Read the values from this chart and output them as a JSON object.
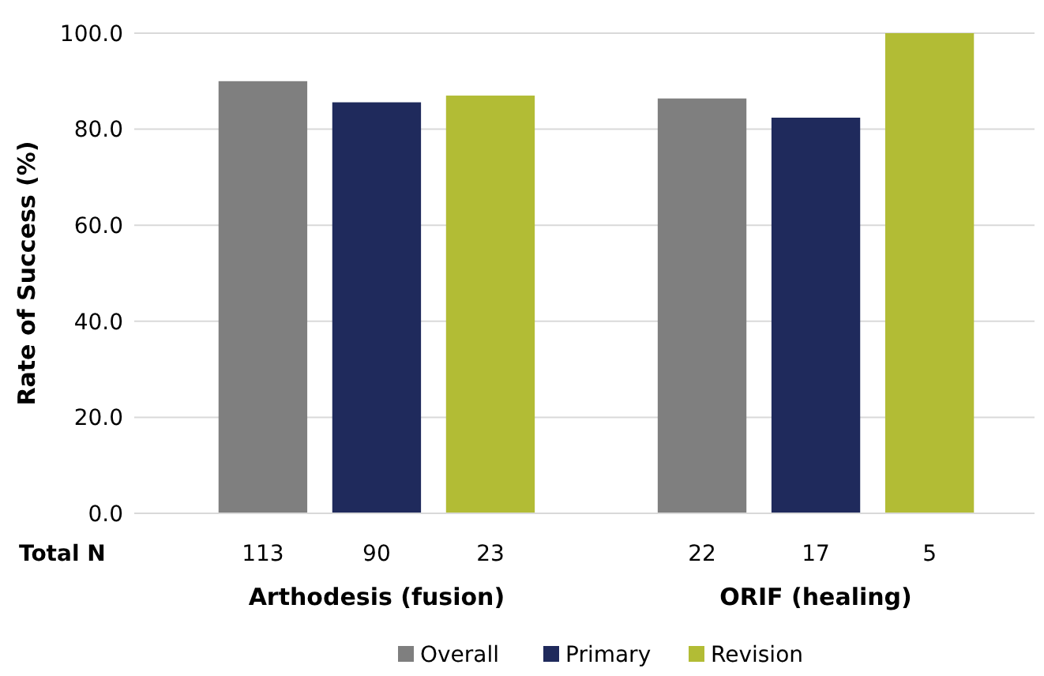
{
  "chart_data": {
    "type": "bar",
    "ylabel": "Rate of Success (%)",
    "categories": [
      "Arthodesis (fusion)",
      "ORIF (healing)"
    ],
    "series": [
      {
        "name": "Overall",
        "color": "#7f7f7f",
        "values": [
          90.0,
          86.4
        ]
      },
      {
        "name": "Primary",
        "color": "#1f2a5c",
        "values": [
          85.6,
          82.4
        ]
      },
      {
        "name": "Revision",
        "color": "#b2bc35",
        "values": [
          87.0,
          100.0
        ]
      }
    ],
    "ylim": [
      0,
      100
    ],
    "yticks": [
      {
        "value": 0,
        "label": "0.0"
      },
      {
        "value": 20,
        "label": "20.0"
      },
      {
        "value": 40,
        "label": "40.0"
      },
      {
        "value": 60,
        "label": "60.0"
      },
      {
        "value": 80,
        "label": "80.0"
      },
      {
        "value": 100,
        "label": "100.0"
      }
    ],
    "grid": "y",
    "legend": "bottom",
    "annotations": [
      "Total N",
      "113",
      "90",
      "23",
      "22",
      "17",
      "5"
    ]
  }
}
